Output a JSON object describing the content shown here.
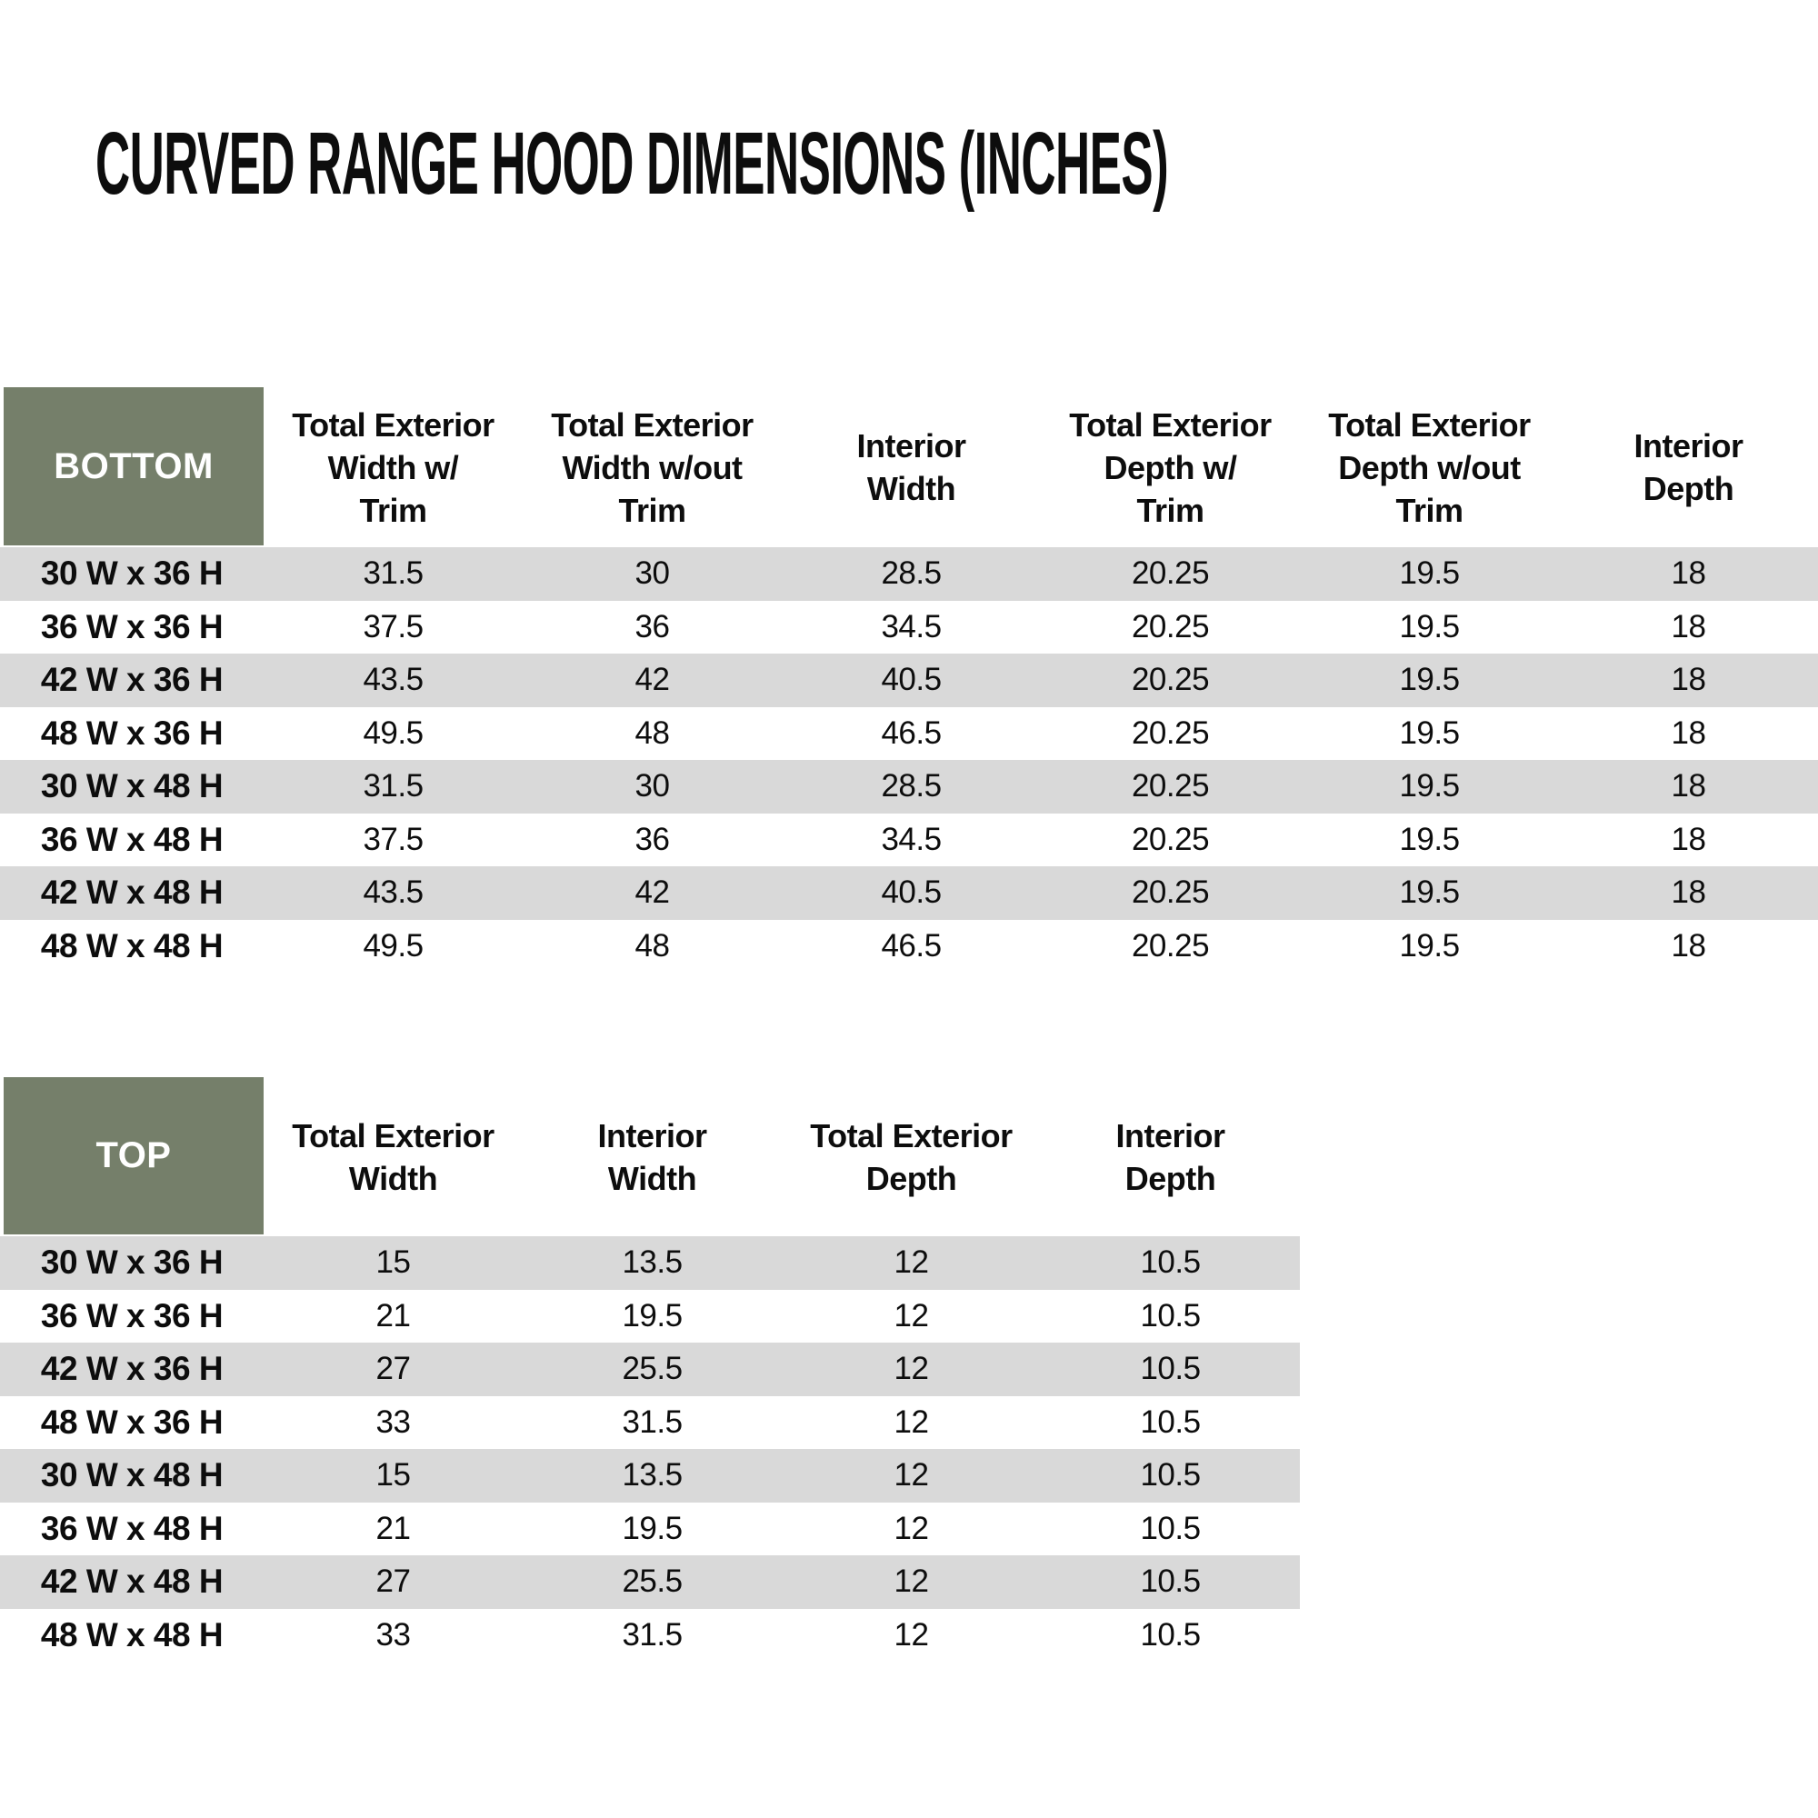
{
  "title": "CURVED RANGE HOOD DIMENSIONS (INCHES)",
  "colors": {
    "header_green": "#757F6A",
    "row_stripe": "#D9D9D9",
    "row_white": "#FFFFFF",
    "text": "#0D0D0D",
    "corner_text": "#FFFFFF"
  },
  "tables": {
    "bottom": {
      "corner_label": "BOTTOM",
      "columns": [
        "Total Exterior\nWidth w/\nTrim",
        "Total Exterior\nWidth w/out\nTrim",
        "Interior\nWidth",
        "Total Exterior\nDepth w/\nTrim",
        "Total Exterior\nDepth w/out\nTrim",
        "Interior\nDepth"
      ],
      "rows": [
        {
          "label": "30 W x 36 H",
          "values": [
            "31.5",
            "30",
            "28.5",
            "20.25",
            "19.5",
            "18"
          ]
        },
        {
          "label": "36 W x 36 H",
          "values": [
            "37.5",
            "36",
            "34.5",
            "20.25",
            "19.5",
            "18"
          ]
        },
        {
          "label": "42 W x 36 H",
          "values": [
            "43.5",
            "42",
            "40.5",
            "20.25",
            "19.5",
            "18"
          ]
        },
        {
          "label": "48 W x 36 H",
          "values": [
            "49.5",
            "48",
            "46.5",
            "20.25",
            "19.5",
            "18"
          ]
        },
        {
          "label": "30 W x 48 H",
          "values": [
            "31.5",
            "30",
            "28.5",
            "20.25",
            "19.5",
            "18"
          ]
        },
        {
          "label": "36 W x 48 H",
          "values": [
            "37.5",
            "36",
            "34.5",
            "20.25",
            "19.5",
            "18"
          ]
        },
        {
          "label": "42 W x 48 H",
          "values": [
            "43.5",
            "42",
            "40.5",
            "20.25",
            "19.5",
            "18"
          ]
        },
        {
          "label": "48 W x 48 H",
          "values": [
            "49.5",
            "48",
            "46.5",
            "20.25",
            "19.5",
            "18"
          ]
        }
      ]
    },
    "top": {
      "corner_label": "TOP",
      "columns": [
        "Total Exterior\nWidth",
        "Interior\nWidth",
        "Total Exterior\nDepth",
        "Interior\nDepth"
      ],
      "rows": [
        {
          "label": "30 W x 36 H",
          "values": [
            "15",
            "13.5",
            "12",
            "10.5"
          ]
        },
        {
          "label": "36 W x 36 H",
          "values": [
            "21",
            "19.5",
            "12",
            "10.5"
          ]
        },
        {
          "label": "42 W x 36 H",
          "values": [
            "27",
            "25.5",
            "12",
            "10.5"
          ]
        },
        {
          "label": "48 W x 36 H",
          "values": [
            "33",
            "31.5",
            "12",
            "10.5"
          ]
        },
        {
          "label": "30 W x 48 H",
          "values": [
            "15",
            "13.5",
            "12",
            "10.5"
          ]
        },
        {
          "label": "36 W x 48 H",
          "values": [
            "21",
            "19.5",
            "12",
            "10.5"
          ]
        },
        {
          "label": "42 W x 48 H",
          "values": [
            "27",
            "25.5",
            "12",
            "10.5"
          ]
        },
        {
          "label": "48 W x 48 H",
          "values": [
            "33",
            "31.5",
            "12",
            "10.5"
          ]
        }
      ]
    }
  }
}
